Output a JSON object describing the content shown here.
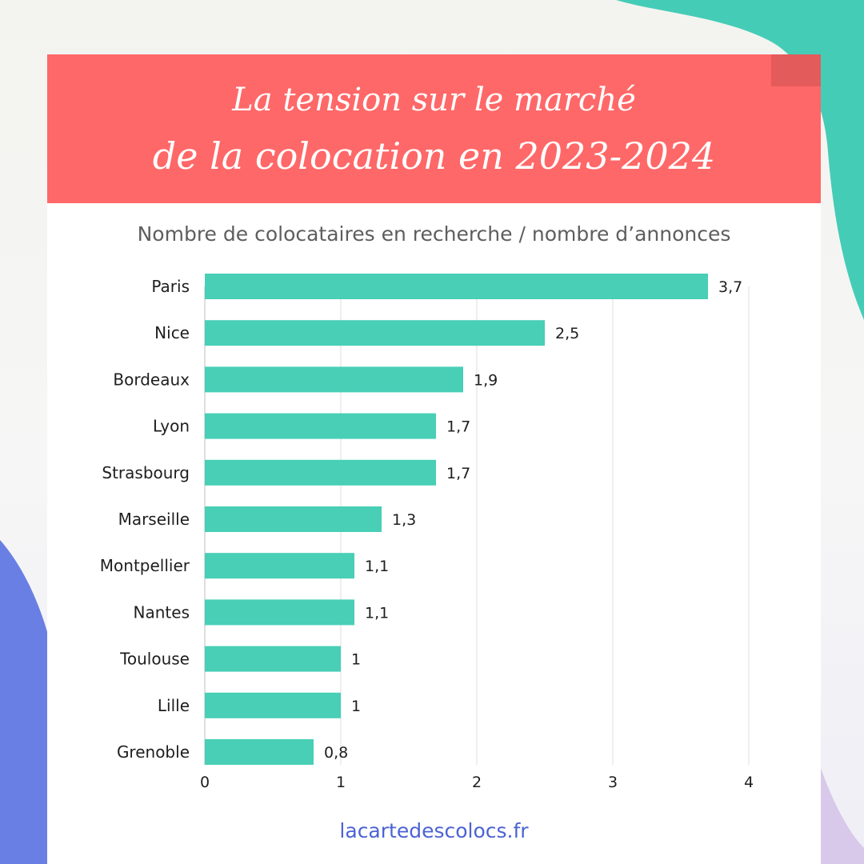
{
  "colors": {
    "banner": "#ff6868",
    "bar": "#48cfb6",
    "accent_teal": "#45ccb7",
    "accent_blue": "#6a7fe3",
    "footer_text": "#4b63d4"
  },
  "title_line_1": "La tension sur le marché",
  "title_line_2": "de la colocation en 2023-2024",
  "footer_link": "lacartedescolocs.fr",
  "chart_data": {
    "type": "bar",
    "orientation": "horizontal",
    "title": "Nombre de colocataires en recherche / nombre d’annonces",
    "categories": [
      "Paris",
      "Nice",
      "Bordeaux",
      "Lyon",
      "Strasbourg",
      "Marseille",
      "Montpellier",
      "Nantes",
      "Toulouse",
      "Lille",
      "Grenoble"
    ],
    "values": [
      3.7,
      2.5,
      1.9,
      1.7,
      1.7,
      1.3,
      1.1,
      1.1,
      1,
      1,
      0.8
    ],
    "value_labels": [
      "3,7",
      "2,5",
      "1,9",
      "1,7",
      "1,7",
      "1,3",
      "1,1",
      "1,1",
      "1",
      "1",
      "0,8"
    ],
    "xlim": [
      0,
      4
    ],
    "xticks": [
      "0",
      "1",
      "2",
      "3",
      "4"
    ],
    "grid": true,
    "legend": "none"
  }
}
